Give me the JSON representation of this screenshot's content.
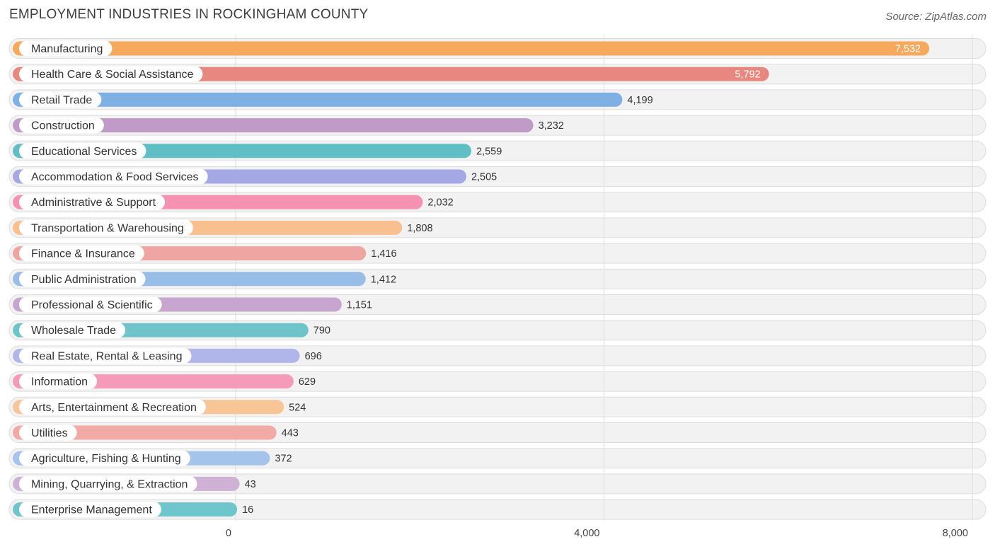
{
  "chart_data": {
    "type": "bar",
    "orientation": "horizontal",
    "title": "EMPLOYMENT INDUSTRIES IN ROCKINGHAM COUNTY",
    "source": "Source: ZipAtlas.com",
    "xlim": [
      0,
      8000
    ],
    "ticks": [
      {
        "value": 0,
        "label": "0"
      },
      {
        "value": 4000,
        "label": "4,000"
      },
      {
        "value": 8000,
        "label": "8,000"
      }
    ],
    "categories": [
      "Manufacturing",
      "Health Care & Social Assistance",
      "Retail Trade",
      "Construction",
      "Educational Services",
      "Accommodation & Food Services",
      "Administrative & Support",
      "Transportation & Warehousing",
      "Finance & Insurance",
      "Public Administration",
      "Professional & Scientific",
      "Wholesale Trade",
      "Real Estate, Rental & Leasing",
      "Information",
      "Arts, Entertainment & Recreation",
      "Utilities",
      "Agriculture, Fishing & Hunting",
      "Mining, Quarrying, & Extraction",
      "Enterprise Management"
    ],
    "values": [
      7532,
      5792,
      4199,
      3232,
      2559,
      2505,
      2032,
      1808,
      1416,
      1412,
      1151,
      790,
      696,
      629,
      524,
      443,
      372,
      43,
      16
    ],
    "value_labels": [
      "7,532",
      "5,792",
      "4,199",
      "3,232",
      "2,559",
      "2,505",
      "2,032",
      "1,808",
      "1,416",
      "1,412",
      "1,151",
      "790",
      "696",
      "629",
      "524",
      "443",
      "372",
      "43",
      "16"
    ],
    "colors": [
      "#f6a95c",
      "#e8877f",
      "#7fb0e3",
      "#c09bc8",
      "#5fbfc4",
      "#a4a9e6",
      "#f592b2",
      "#f8c08e",
      "#efa6a2",
      "#98bde6",
      "#c7a5cf",
      "#6ec4c9",
      "#b1b6ea",
      "#f59ab8",
      "#f8c596",
      "#f1aaa6",
      "#a4c4ec",
      "#d0b1d6",
      "#6ec5cb"
    ],
    "grid": true,
    "legend": "none"
  }
}
